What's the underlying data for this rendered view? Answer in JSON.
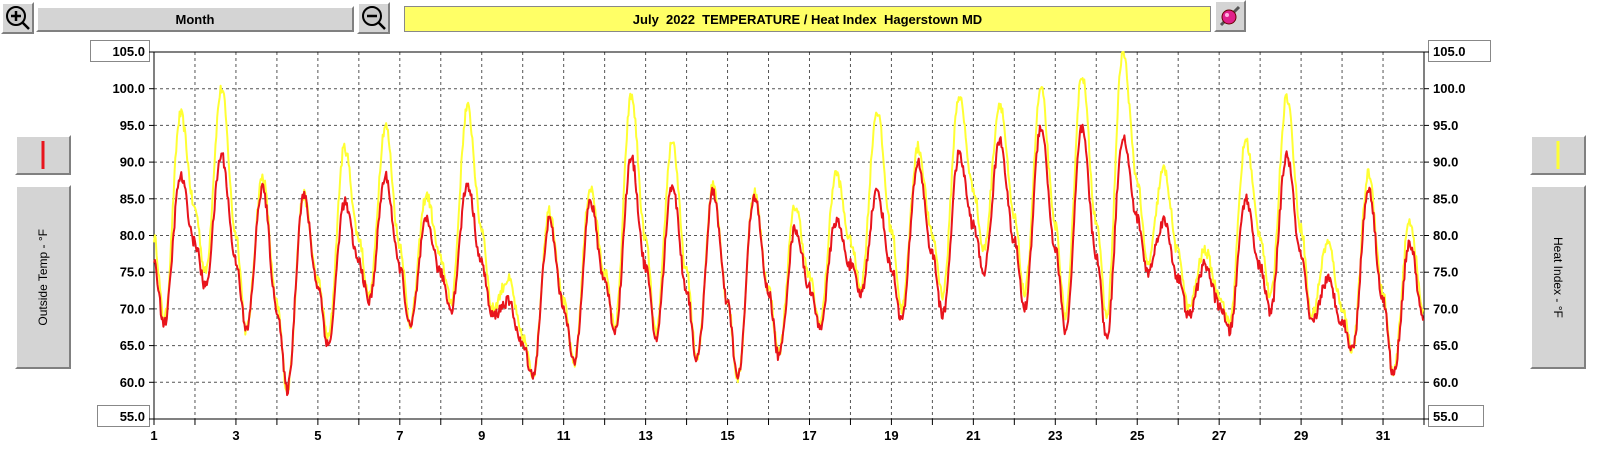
{
  "toolbar": {
    "zoom_in_icon": "zoom-in-icon",
    "zoom_out_icon": "zoom-out-icon",
    "period_label": "Month",
    "settings_icon": "paint-palette-icon"
  },
  "colors": {
    "outside_temp": "#e8141c",
    "heat_index": "#ffff33",
    "title_bar": "#ffff66",
    "grid": "#555555"
  },
  "left_panel": {
    "swatch_icon": "red-line-swatch-icon",
    "axis_button_label": "Outside Temp - °F",
    "top_range_value": "105.0",
    "bottom_range_value": "55.0"
  },
  "right_panel": {
    "swatch_icon": "yellow-line-swatch-icon",
    "axis_button_label": "Heat Index - °F",
    "top_range_value": "105.0",
    "bottom_range_value": "55.0"
  },
  "chart_data": {
    "type": "line",
    "title": "July  2022  TEMPERATURE / Heat Index  Hagerstown MD",
    "ylabel_left": "Outside Temp - °F",
    "ylabel_right": "Heat Index - °F",
    "ylim": [
      55,
      105
    ],
    "xlim": [
      1,
      32
    ],
    "grid": true,
    "x_ticks": [
      "1",
      "3",
      "5",
      "7",
      "9",
      "11",
      "13",
      "15",
      "17",
      "19",
      "21",
      "23",
      "25",
      "27",
      "29",
      "31"
    ],
    "y_ticks": [
      "55.0",
      "60.0",
      "65.0",
      "70.0",
      "75.0",
      "80.0",
      "85.0",
      "90.0",
      "95.0",
      "100.0",
      "105.0"
    ],
    "days": [
      1,
      2,
      3,
      4,
      5,
      6,
      7,
      8,
      9,
      10,
      11,
      12,
      13,
      14,
      15,
      16,
      17,
      18,
      19,
      20,
      21,
      22,
      23,
      24,
      25,
      26,
      27,
      28,
      29,
      30,
      31
    ],
    "series": [
      {
        "label": "Outside Temp",
        "axis": "left",
        "daily_high": [
          88,
          91,
          86.5,
          85.5,
          84.5,
          88,
          82,
          87,
          71,
          82,
          84.5,
          90.5,
          87,
          86,
          85.5,
          81,
          82,
          86,
          90,
          91,
          93,
          95,
          94.5,
          93.5,
          82,
          76,
          85,
          91,
          74,
          86.5,
          79
        ],
        "daily_low": [
          68,
          73,
          67,
          59,
          65,
          71,
          67.5,
          70,
          69,
          61,
          62.5,
          67,
          66,
          63,
          60.5,
          63.5,
          67.5,
          72,
          68.5,
          69,
          75,
          70,
          67,
          66,
          75,
          69,
          67,
          69.5,
          68,
          64.5,
          61
        ]
      },
      {
        "label": "Heat Index",
        "axis": "right",
        "daily_high": [
          96.5,
          100,
          88,
          85.5,
          92,
          95,
          85.5,
          97.5,
          74,
          83.5,
          86.5,
          99,
          93,
          87,
          86,
          84,
          88.5,
          97,
          92,
          99,
          98,
          100,
          102,
          105,
          89,
          78,
          93,
          99,
          79,
          88.5,
          82
        ],
        "daily_low": [
          68.5,
          75,
          67,
          59,
          66,
          71.5,
          68,
          71,
          70,
          61,
          62.5,
          67.5,
          66.5,
          63,
          60.5,
          64,
          68,
          73,
          70,
          72,
          78,
          72,
          69,
          69,
          76,
          70,
          68,
          71.5,
          69,
          64.5,
          61
        ]
      }
    ]
  }
}
